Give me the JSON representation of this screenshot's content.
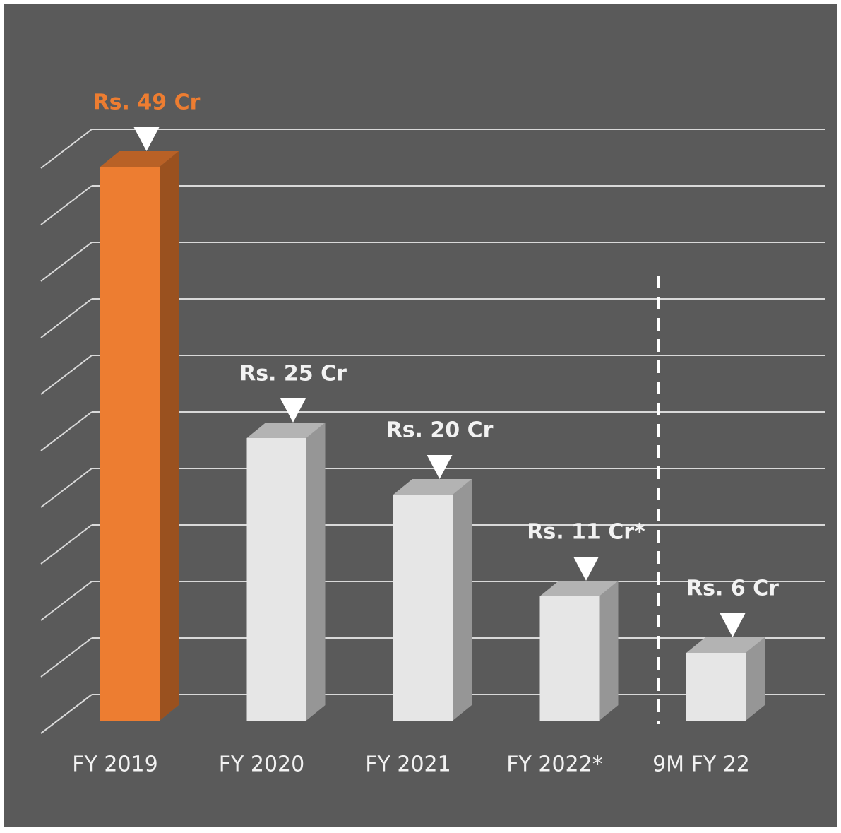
{
  "chart_data": {
    "type": "bar3d",
    "categories": [
      "FY 2019",
      "FY 2020",
      "FY 2021",
      "FY 2022*",
      "9M FY 22"
    ],
    "values": [
      49,
      25,
      20,
      11,
      6
    ],
    "value_labels": [
      "Rs. 49 Cr",
      "Rs. 25 Cr",
      "Rs. 20 Cr",
      "Rs. 11 Cr*",
      "Rs. 6 Cr"
    ],
    "colors": [
      "#ed7d31",
      "#e6e6e6",
      "#e6e6e6",
      "#e6e6e6",
      "#e6e6e6"
    ],
    "label_colors": [
      "#ed7d31",
      "#f2f2f2",
      "#f2f2f2",
      "#f2f2f2",
      "#f2f2f2"
    ],
    "ylim": [
      0,
      50
    ],
    "yticks": [
      0,
      5,
      10,
      15,
      20,
      25,
      30,
      35,
      40,
      45,
      50
    ],
    "grid": true
  }
}
